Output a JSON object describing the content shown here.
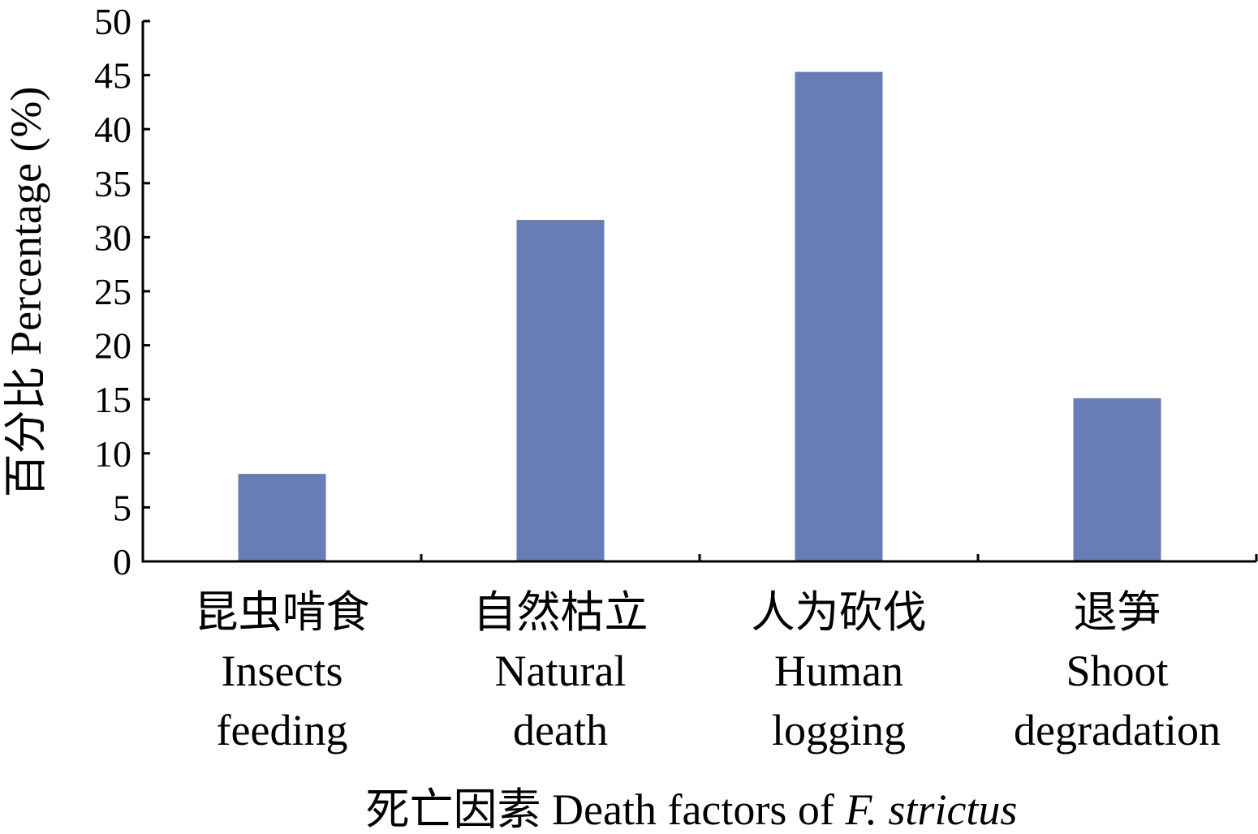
{
  "chart_data": {
    "type": "bar",
    "categories": [
      {
        "zh": "昆虫啃食",
        "en": [
          "Insects",
          "feeding"
        ]
      },
      {
        "zh": "自然枯立",
        "en": [
          "Natural",
          "death"
        ]
      },
      {
        "zh": "人为砍伐",
        "en": [
          "Human",
          "logging"
        ]
      },
      {
        "zh": "退笋",
        "en": [
          "Shoot",
          "degradation"
        ]
      }
    ],
    "values": [
      8.1,
      31.6,
      45.3,
      15.1
    ],
    "ylim": [
      0,
      50
    ],
    "yticks": [
      "0",
      "5",
      "10",
      "15",
      "20",
      "25",
      "30",
      "35",
      "40",
      "45",
      "50"
    ],
    "ylabel": "百分比 Percentage (%)",
    "xlabel": {
      "main": "死亡因素 Death factors of ",
      "species": "F. strictus"
    },
    "bar_color": "#687db5",
    "grid": false
  }
}
